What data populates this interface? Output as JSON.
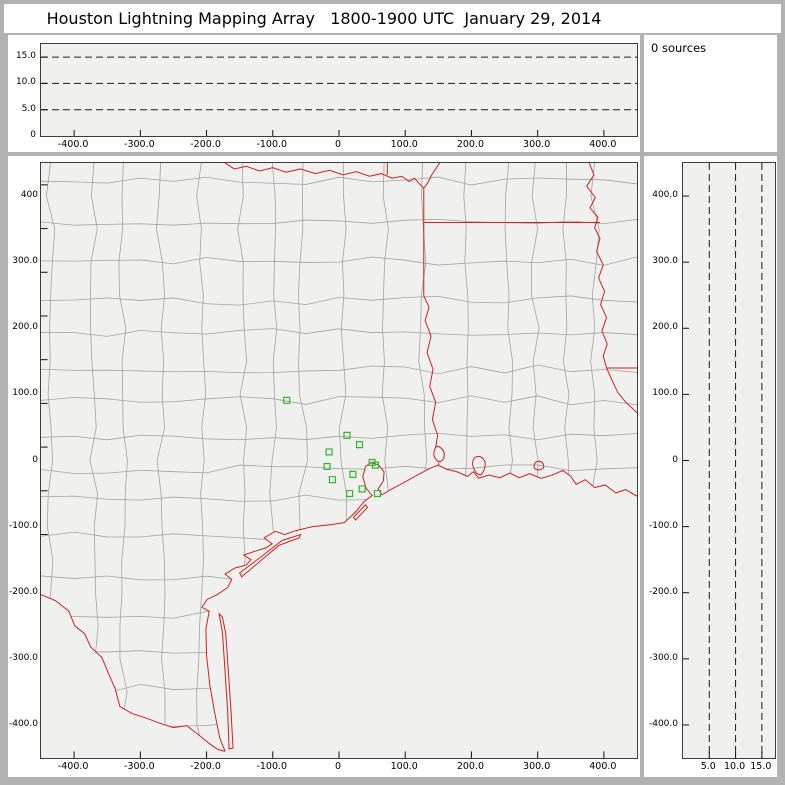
{
  "title": "Houston Lightning Mapping Array   1800-1900 UTC  January 29, 2014",
  "sources_panel": {
    "label": "0 sources"
  },
  "alt_panel": {
    "y_tick_labels": [
      "15.0",
      "10.0",
      "5.0",
      "0"
    ],
    "x_tick_labels": [
      "-400.0",
      "-300.0",
      "-200.0",
      "-100.0",
      "0",
      "100.0",
      "200.0",
      "300.0",
      "400.0"
    ],
    "dashed_altitudes_km": [
      5,
      10,
      15
    ],
    "altitude_range_km": [
      0,
      17.5
    ]
  },
  "map_panel": {
    "y_tick_labels": [
      "400",
      "300.0",
      "200.0",
      "100.0",
      "0",
      "-100.0",
      "-200.0",
      "-300.0",
      "-400.0"
    ],
    "x_tick_labels": [
      "-400.0",
      "-300.0",
      "-200.0",
      "-100.0",
      "0",
      "100.0",
      "200.0",
      "300.0",
      "400.0"
    ],
    "extent_km": [
      -450,
      450
    ]
  },
  "right_panel": {
    "y_tick_labels": [
      "400.0",
      "300.0",
      "200.0",
      "100.0",
      "0",
      "-100.0",
      "-200.0",
      "-300.0",
      "-400.0"
    ],
    "x_tick_labels": [
      "5.0",
      "10.0",
      "15.0"
    ],
    "dashed_altitudes_km": [
      5,
      10,
      15
    ]
  },
  "stations_km": [
    [
      -79,
      91
    ],
    [
      12,
      38
    ],
    [
      31,
      24
    ],
    [
      -15,
      13
    ],
    [
      50,
      -3
    ],
    [
      55,
      -7
    ],
    [
      -18,
      -9
    ],
    [
      21,
      -21
    ],
    [
      -10,
      -29
    ],
    [
      35,
      -43
    ],
    [
      16,
      -50
    ],
    [
      58,
      -50
    ]
  ],
  "colors": {
    "county_border": "#a2a2a2",
    "state_border": "#cc2222",
    "station": "#2eb82e",
    "plot_background": "#f0f0ee",
    "window_background": "#b2b2b2",
    "dashed_line": "#1a1a1a"
  }
}
